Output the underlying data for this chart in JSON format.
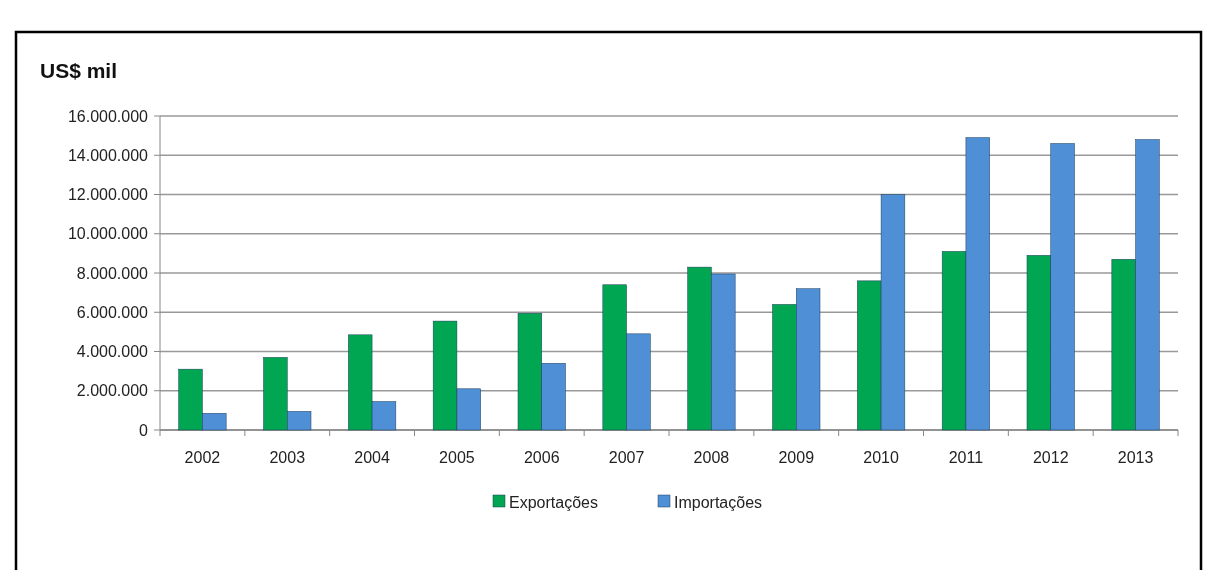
{
  "chart_data": {
    "type": "bar",
    "ylabel": "US$ mil",
    "categories": [
      "2002",
      "2003",
      "2004",
      "2005",
      "2006",
      "2007",
      "2008",
      "2009",
      "2010",
      "2011",
      "2012",
      "2013"
    ],
    "series": [
      {
        "name": "Exportações",
        "color": "#00a651",
        "values": [
          3100000,
          3700000,
          4850000,
          5550000,
          5950000,
          7400000,
          8300000,
          6400000,
          7600000,
          9100000,
          8900000,
          8700000
        ]
      },
      {
        "name": "Importações",
        "color": "#4f8fd6",
        "values": [
          850000,
          950000,
          1450000,
          2100000,
          3400000,
          4900000,
          7950000,
          7200000,
          12000000,
          14900000,
          14600000,
          14800000
        ]
      }
    ],
    "ylim": [
      0,
      16000000
    ],
    "yticks": [
      {
        "value": 0,
        "label": "0"
      },
      {
        "value": 2000000,
        "label": "2.000.000"
      },
      {
        "value": 4000000,
        "label": "4.000.000"
      },
      {
        "value": 6000000,
        "label": "6.000.000"
      },
      {
        "value": 8000000,
        "label": "8.000.000"
      },
      {
        "value": 10000000,
        "label": "10.000.000"
      },
      {
        "value": 12000000,
        "label": "12.000.000"
      },
      {
        "value": 14000000,
        "label": "14.000.000"
      },
      {
        "value": 16000000,
        "label": "16.000.000"
      }
    ],
    "grid": "y",
    "legend": "bottom"
  }
}
